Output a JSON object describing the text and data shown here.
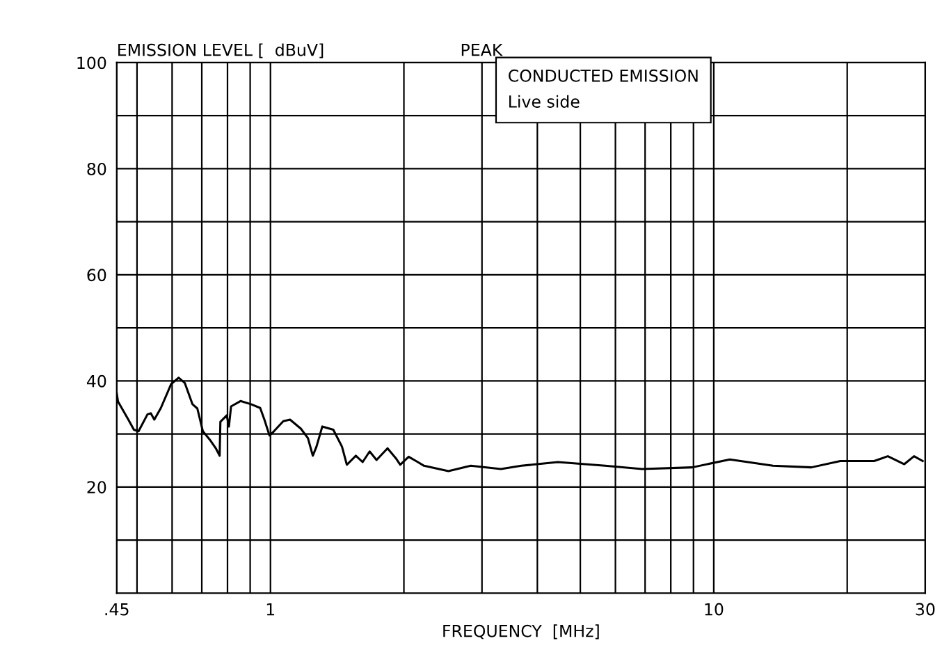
{
  "chart_data": {
    "type": "line",
    "ylabel": "EMISSION LEVEL [  dBuV]",
    "xlabel": "FREQUENCY  [MHz]",
    "annotations": [
      "PEAK",
      "CONDUCTED EMISSION\nLive side"
    ],
    "log": "x",
    "grid": true,
    "marker": "none",
    "line_style": "solid",
    "xlim": [
      0.45,
      30
    ],
    "ylim": [
      0,
      100
    ],
    "xticks": [
      {
        "value": 0.45,
        "label": ".45"
      },
      {
        "value": 0.5,
        "label": null
      },
      {
        "value": 0.6,
        "label": null
      },
      {
        "value": 0.7,
        "label": null
      },
      {
        "value": 0.8,
        "label": null
      },
      {
        "value": 0.9,
        "label": null
      },
      1,
      {
        "value": 2,
        "label": null
      },
      {
        "value": 3,
        "label": null
      },
      {
        "value": 4,
        "label": null
      },
      {
        "value": 5,
        "label": null
      },
      {
        "value": 6,
        "label": null
      },
      {
        "value": 7,
        "label": null
      },
      {
        "value": 8,
        "label": null
      },
      {
        "value": 9,
        "label": null
      },
      10,
      {
        "value": 20,
        "label": null
      },
      30
    ],
    "yticks": [
      {
        "value": 10,
        "label": null
      },
      20,
      {
        "value": 30,
        "label": null
      },
      40,
      {
        "value": 50,
        "label": null
      },
      60,
      {
        "value": 70,
        "label": null
      },
      80,
      {
        "value": 90,
        "label": null
      },
      100
    ],
    "series": [
      {
        "color": "#000000",
        "x": [
          0.45,
          0.453,
          0.478,
          0.492,
          0.504,
          0.528,
          0.537,
          0.547,
          0.566,
          0.597,
          0.621,
          0.641,
          0.667,
          0.684,
          0.704,
          0.73,
          0.754,
          0.768,
          0.771,
          0.797,
          0.806,
          0.815,
          0.856,
          0.904,
          0.948,
          0.969,
          0.995,
          1.018,
          1.069,
          1.107,
          1.171,
          1.215,
          1.246,
          1.27,
          1.309,
          1.386,
          1.45,
          1.487,
          1.558,
          1.614,
          1.674,
          1.735,
          1.837,
          1.919,
          1.962,
          2.05,
          2.15,
          2.22,
          2.52,
          2.83,
          3.31,
          3.68,
          4.45,
          5.69,
          6.89,
          8.94,
          10.87,
          13.6,
          16.6,
          19.3,
          23.0,
          24.7,
          26.9,
          28.3,
          29.6
        ],
        "values": [
          37.7,
          36.1,
          32.7,
          30.8,
          30.5,
          33.7,
          33.9,
          32.7,
          34.9,
          39.4,
          40.6,
          39.6,
          35.6,
          34.8,
          30.5,
          28.9,
          27.2,
          25.9,
          32.3,
          33.5,
          31.4,
          35.2,
          36.2,
          35.6,
          34.9,
          32.7,
          29.7,
          30.5,
          32.4,
          32.7,
          31.0,
          29.2,
          25.9,
          27.6,
          31.4,
          30.8,
          27.6,
          24.2,
          25.9,
          24.7,
          26.7,
          25.1,
          27.3,
          25.4,
          24.2,
          25.7,
          24.7,
          24.0,
          23.0,
          24.0,
          23.4,
          24.0,
          24.7,
          24.0,
          23.4,
          23.7,
          25.2,
          24.0,
          23.7,
          24.9,
          24.9,
          25.8,
          24.3,
          25.8,
          24.9
        ]
      }
    ]
  }
}
